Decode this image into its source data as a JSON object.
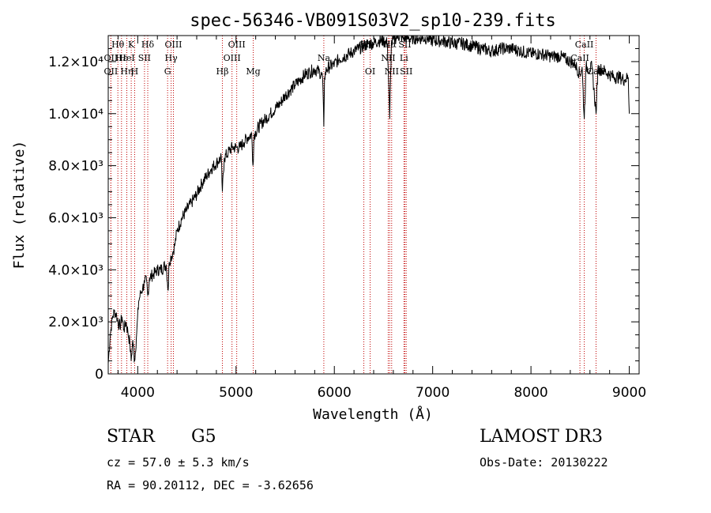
{
  "chart_data": {
    "type": "line",
    "title": "spec-56346-VB091S03V2_sp10-239.fits",
    "xlabel": "Wavelength (Å)",
    "ylabel": "Flux (relative)",
    "xlim": [
      3700,
      9100
    ],
    "ylim": [
      0,
      13000
    ],
    "x_ticks": [
      4000,
      5000,
      6000,
      7000,
      8000,
      9000
    ],
    "x_tick_labels": [
      "4000",
      "5000",
      "6000",
      "7000",
      "8000",
      "9000"
    ],
    "y_ticks": [
      0,
      2000,
      4000,
      6000,
      8000,
      10000,
      12000
    ],
    "y_tick_labels": [
      "0",
      "2.0×10³",
      "4.0×10³",
      "6.0×10³",
      "8.0×10³",
      "1.0×10⁴",
      "1.2×10⁴"
    ],
    "series": [
      {
        "name": "spectrum",
        "color": "#000000",
        "x": [
          3700,
          3720,
          3740,
          3760,
          3780,
          3800,
          3820,
          3840,
          3860,
          3880,
          3900,
          3920,
          3933,
          3950,
          3968,
          3990,
          4010,
          4030,
          4050,
          4070,
          4090,
          4102,
          4120,
          4150,
          4180,
          4200,
          4230,
          4260,
          4290,
          4310,
          4320,
          4340,
          4360,
          4380,
          4400,
          4450,
          4500,
          4550,
          4600,
          4650,
          4700,
          4750,
          4800,
          4850,
          4861,
          4880,
          4920,
          4960,
          5000,
          5040,
          5080,
          5120,
          5160,
          5172,
          5184,
          5200,
          5250,
          5300,
          5350,
          5400,
          5450,
          5500,
          5550,
          5600,
          5650,
          5700,
          5750,
          5800,
          5850,
          5880,
          5893,
          5900,
          5920,
          5950,
          6000,
          6050,
          6100,
          6150,
          6200,
          6250,
          6300,
          6350,
          6400,
          6450,
          6500,
          6540,
          6563,
          6580,
          6620,
          6650,
          6700,
          6750,
          6800,
          6850,
          6900,
          6950,
          7000,
          7100,
          7200,
          7300,
          7400,
          7500,
          7600,
          7700,
          7800,
          7900,
          8000,
          8100,
          8200,
          8300,
          8400,
          8450,
          8498,
          8520,
          8542,
          8560,
          8600,
          8620,
          8662,
          8680,
          8720,
          8760,
          8800,
          8850,
          8900,
          8950,
          8990,
          9000
        ],
        "y": [
          400,
          1500,
          2100,
          2400,
          2300,
          2000,
          1800,
          2200,
          1700,
          2000,
          1600,
          1200,
          500,
          1300,
          500,
          1600,
          2800,
          3100,
          3300,
          3500,
          3600,
          3000,
          3700,
          3800,
          3900,
          4000,
          4000,
          4100,
          4200,
          3200,
          4300,
          4500,
          4700,
          5000,
          5500,
          6000,
          6300,
          6600,
          6900,
          7300,
          7600,
          7900,
          8100,
          8300,
          7000,
          8300,
          8500,
          8700,
          8700,
          8700,
          8900,
          9100,
          9200,
          8000,
          9200,
          9300,
          9600,
          9800,
          10000,
          10200,
          10400,
          10700,
          10900,
          11100,
          11300,
          11500,
          11600,
          11700,
          11600,
          11400,
          9500,
          11400,
          11700,
          11800,
          11900,
          12100,
          12200,
          12300,
          12400,
          12500,
          12600,
          12700,
          12700,
          12800,
          12800,
          12700,
          9800,
          12700,
          12900,
          13000,
          12900,
          12900,
          12900,
          12900,
          12900,
          12900,
          12800,
          12800,
          12700,
          12700,
          12600,
          12500,
          12400,
          12500,
          12500,
          12400,
          12300,
          12300,
          12200,
          12200,
          12000,
          11900,
          11500,
          11800,
          9800,
          11800,
          11700,
          11800,
          10000,
          11700,
          11700,
          11600,
          11500,
          11400,
          11400,
          11300,
          11400,
          10000
        ]
      }
    ],
    "lines": [
      {
        "label": "Hθ",
        "wavelength": 3798,
        "label_row": 0
      },
      {
        "label": "OII",
        "wavelength": 3727,
        "label_row": 1
      },
      {
        "label": "OII",
        "wavelength": 3727,
        "label_row": 2
      },
      {
        "label": "K",
        "wavelength": 3934,
        "label_row": 0
      },
      {
        "label": "Hε",
        "wavelength": 3835,
        "label_row": 1
      },
      {
        "label": "Hη",
        "wavelength": 3889,
        "label_row": 2
      },
      {
        "label": "HeI",
        "wavelength": 3889,
        "label_row": 1
      },
      {
        "label": "H",
        "wavelength": 3969,
        "label_row": 2
      },
      {
        "label": "SII",
        "wavelength": 4069,
        "label_row": 1
      },
      {
        "label": "Hδ",
        "wavelength": 4102,
        "label_row": 0
      },
      {
        "label": "OIII",
        "wavelength": 4363,
        "label_row": 0
      },
      {
        "label": "Hγ",
        "wavelength": 4340,
        "label_row": 1
      },
      {
        "label": "G",
        "wavelength": 4304,
        "label_row": 2
      },
      {
        "label": "Hβ",
        "wavelength": 4861,
        "label_row": 2
      },
      {
        "label": "OIII",
        "wavelength": 5007,
        "label_row": 0
      },
      {
        "label": "OIII",
        "wavelength": 4959,
        "label_row": 1
      },
      {
        "label": "Mg",
        "wavelength": 5175,
        "label_row": 2
      },
      {
        "label": "Na",
        "wavelength": 5893,
        "label_row": 1
      },
      {
        "label": "OI",
        "wavelength": 6300,
        "label_row": 0
      },
      {
        "label": "OI",
        "wavelength": 6364,
        "label_row": 2
      },
      {
        "label": "Hα",
        "wavelength": 6563,
        "label_row": 0
      },
      {
        "label": "SII",
        "wavelength": 6717,
        "label_row": 0
      },
      {
        "label": "NII",
        "wavelength": 6548,
        "label_row": 1
      },
      {
        "label": "Li",
        "wavelength": 6708,
        "label_row": 1
      },
      {
        "label": "NII",
        "wavelength": 6583,
        "label_row": 2
      },
      {
        "label": "SII",
        "wavelength": 6731,
        "label_row": 2
      },
      {
        "label": "CaII",
        "wavelength": 8542,
        "label_row": 0
      },
      {
        "label": "CaII",
        "wavelength": 8498,
        "label_row": 1
      },
      {
        "label": "CaII",
        "wavelength": 8662,
        "label_row": 2
      }
    ],
    "line_color": "#c00000"
  },
  "info": {
    "object_type": "STAR",
    "subclass": "G5",
    "survey": "LAMOST DR3",
    "cz": "cz = 57.0 ± 5.3 km/s",
    "obs_date": "Obs-Date: 20130222",
    "coords": "RA =  90.20112, DEC =  -3.62656"
  }
}
